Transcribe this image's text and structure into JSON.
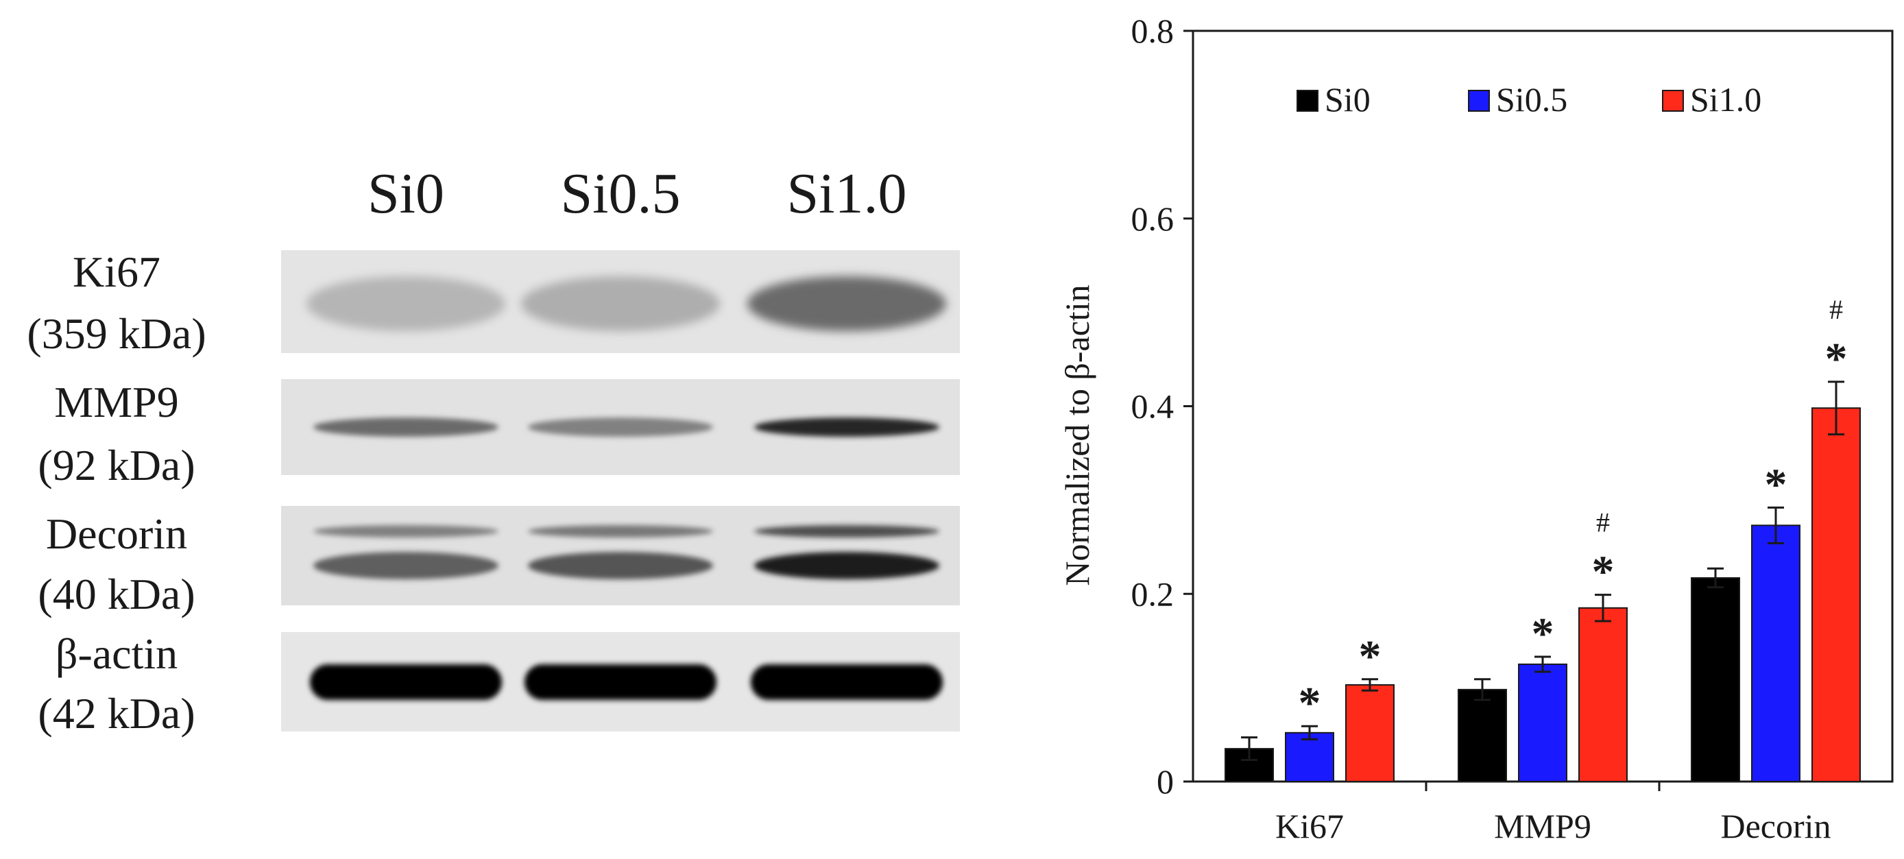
{
  "blot": {
    "lane_labels": [
      "Si0",
      "Si0.5",
      "Si1.0"
    ],
    "proteins": [
      {
        "name": "Ki67",
        "size": "(359 kDa)",
        "intensity": [
          0.22,
          0.25,
          0.55
        ],
        "bands": 1
      },
      {
        "name": "MMP9",
        "size": "(92 kDa)",
        "intensity": [
          0.55,
          0.45,
          0.85
        ],
        "bands": 1
      },
      {
        "name": "Decorin",
        "size": "(40 kDa)",
        "intensity": [
          0.6,
          0.65,
          0.9
        ],
        "bands": 2
      },
      {
        "name": "β-actin",
        "size": "(42 kDa)",
        "intensity": [
          1.0,
          1.0,
          1.0
        ],
        "bands": 1
      }
    ]
  },
  "chart_data": {
    "type": "bar",
    "categories": [
      "Ki67",
      "MMP9",
      "Decorin"
    ],
    "series": [
      {
        "name": "Si0",
        "color": "#000000",
        "values": [
          0.035,
          0.098,
          0.217
        ],
        "errors": [
          0.012,
          0.011,
          0.01
        ],
        "marks": [
          "",
          "",
          ""
        ]
      },
      {
        "name": "Si0.5",
        "color": "#1a1aff",
        "values": [
          0.052,
          0.125,
          0.273
        ],
        "errors": [
          0.007,
          0.008,
          0.019
        ],
        "marks": [
          "*",
          "*",
          "*"
        ]
      },
      {
        "name": "Si1.0",
        "color": "#ff2a1a",
        "values": [
          0.103,
          0.185,
          0.398
        ],
        "errors": [
          0.006,
          0.014,
          0.028
        ],
        "marks": [
          "*",
          "*\n#",
          "*\n#"
        ]
      }
    ],
    "ylabel": "Normalized to β-actin",
    "xlabel": "",
    "ylim": [
      0,
      0.8
    ],
    "yticks": [
      0,
      0.2,
      0.4,
      0.6,
      0.8
    ],
    "ytick_labels": [
      "0",
      "0.2",
      "0.4",
      "0.6",
      "0.8"
    ],
    "legend": "top-inside",
    "grid": false
  }
}
